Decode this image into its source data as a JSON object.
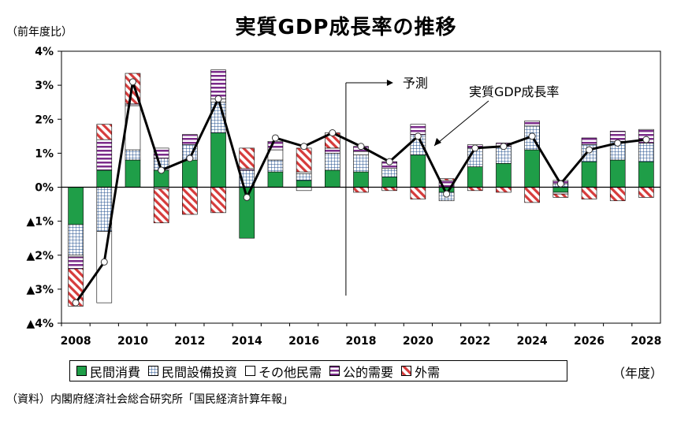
{
  "chart_data": {
    "type": "bar",
    "title": "実質GDP成長率の推移",
    "ylabel": "（前年度比）",
    "xunit": "（年度）",
    "source": "（資料）内閣府経済社会総合研究所「国民経済計算年報」",
    "ylim": [
      -4,
      4
    ],
    "yticks": [
      {
        "value": 4,
        "label": "4%"
      },
      {
        "value": 3,
        "label": "3%"
      },
      {
        "value": 2,
        "label": "2%"
      },
      {
        "value": 1,
        "label": "1%"
      },
      {
        "value": 0,
        "label": "0%"
      },
      {
        "value": -1,
        "label": "▲1%"
      },
      {
        "value": -2,
        "label": "▲2%"
      },
      {
        "value": -3,
        "label": "▲3%"
      },
      {
        "value": -4,
        "label": "▲4%"
      }
    ],
    "categories": [
      "2008",
      "2009",
      "2010",
      "2011",
      "2012",
      "2013",
      "2014",
      "2015",
      "2016",
      "2017",
      "2018",
      "2019",
      "2020",
      "2021",
      "2022",
      "2023",
      "2024",
      "2025",
      "2026",
      "2027",
      "2028"
    ],
    "xticklabels": [
      "2008",
      "",
      "2010",
      "",
      "2012",
      "",
      "2014",
      "",
      "2016",
      "",
      "2018",
      "",
      "2020",
      "",
      "2022",
      "",
      "2024",
      "",
      "2026",
      "",
      "2028"
    ],
    "series": [
      {
        "name": "民間消費",
        "color": "#1f9e48",
        "pattern": "solid",
        "values": [
          -1.1,
          0.5,
          0.8,
          0.5,
          0.8,
          1.6,
          -1.5,
          0.45,
          0.2,
          0.5,
          0.45,
          0.3,
          0.95,
          -0.15,
          0.6,
          0.7,
          1.1,
          -0.15,
          0.75,
          0.8,
          0.75
        ]
      },
      {
        "name": "民間設備投資",
        "color": "#1f4e8c",
        "pattern": "grid",
        "values": [
          -0.9,
          -1.3,
          0.3,
          0.35,
          0.45,
          0.9,
          0.5,
          0.35,
          0.2,
          0.5,
          0.5,
          0.25,
          0.6,
          -0.25,
          0.55,
          0.5,
          0.7,
          0.1,
          0.5,
          0.55,
          0.55
        ]
      },
      {
        "name": "その他民需",
        "color": "#000000",
        "pattern": "white",
        "values": [
          -0.05,
          -2.1,
          1.3,
          -0.05,
          0.0,
          0.1,
          0.0,
          0.3,
          -0.1,
          0.0,
          0.1,
          0.0,
          0.0,
          0.0,
          0.0,
          0.0,
          0.0,
          -0.05,
          0.0,
          0.0,
          0.0
        ]
      },
      {
        "name": "公的需要",
        "color": "#7b2c8a",
        "pattern": "hstripe",
        "values": [
          -0.35,
          0.9,
          0.05,
          0.3,
          0.3,
          0.85,
          0.05,
          0.25,
          0.05,
          0.15,
          0.15,
          0.2,
          0.3,
          0.2,
          0.1,
          0.1,
          0.15,
          0.1,
          0.2,
          0.3,
          0.4
        ]
      },
      {
        "name": "外需",
        "color": "#d63b3b",
        "pattern": "diag",
        "values": [
          -1.1,
          0.45,
          0.9,
          -1.0,
          -0.8,
          -0.75,
          0.6,
          0.0,
          0.7,
          0.45,
          -0.15,
          -0.1,
          -0.35,
          0.05,
          -0.1,
          -0.15,
          -0.45,
          -0.1,
          -0.35,
          -0.4,
          -0.3
        ]
      }
    ],
    "line": {
      "name": "実質GDP成長率",
      "values": [
        -3.4,
        -2.2,
        3.1,
        0.5,
        0.85,
        2.6,
        -0.3,
        1.45,
        1.2,
        1.6,
        1.2,
        0.75,
        1.5,
        -0.2,
        1.15,
        1.2,
        1.5,
        0.1,
        1.1,
        1.3,
        1.4
      ]
    },
    "annotations": {
      "forecast_label": "予測",
      "line_label": "実質GDP成長率",
      "forecast_start": "2018"
    }
  }
}
